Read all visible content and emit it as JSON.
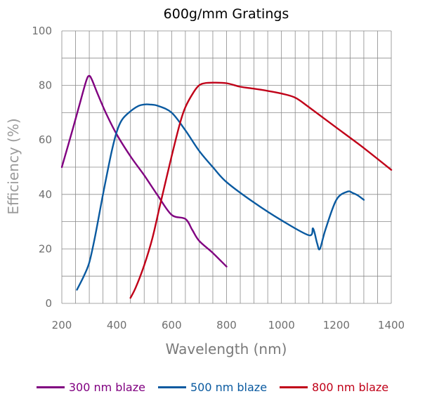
{
  "chart_data": {
    "type": "line",
    "title": "600g/mm Gratings",
    "xlabel": "Wavelength (nm)",
    "ylabel": "Efficiency  (%)",
    "xlim": [
      200,
      1400
    ],
    "ylim": [
      0,
      100
    ],
    "xticks": [
      200,
      400,
      600,
      800,
      1000,
      1200,
      1400
    ],
    "yticks": [
      0,
      20,
      40,
      60,
      80,
      100
    ],
    "grid": true,
    "legend_position": "bottom",
    "series": [
      {
        "name": "300 nm blaze",
        "color": "#800080",
        "x": [
          200,
          240,
          270,
          290,
          300,
          310,
          330,
          360,
          400,
          450,
          500,
          550,
          600,
          650,
          675,
          700,
          750,
          800
        ],
        "y": [
          50,
          64,
          75,
          82,
          83.5,
          82,
          77,
          70,
          62,
          54,
          47,
          39.5,
          32.5,
          31,
          27,
          23,
          18.5,
          13.5
        ]
      },
      {
        "name": "500 nm blaze",
        "color": "#0a5aa0",
        "x": [
          255,
          280,
          300,
          320,
          350,
          380,
          400,
          420,
          450,
          480,
          500,
          520,
          550,
          600,
          650,
          700,
          750,
          800,
          900,
          1000,
          1100,
          1115,
          1130,
          1140,
          1160,
          1200,
          1240,
          1260,
          1280,
          1300
        ],
        "y": [
          5,
          10,
          15,
          24,
          40,
          55,
          63,
          67.5,
          70.5,
          72.5,
          73,
          73,
          72.5,
          70,
          63.5,
          56,
          50,
          44.5,
          37,
          30.5,
          25,
          27.5,
          22,
          20,
          27,
          38,
          41,
          40.5,
          39.5,
          38
        ]
      },
      {
        "name": "800 nm blaze",
        "color": "#c00018",
        "x": [
          450,
          470,
          500,
          530,
          560,
          600,
          630,
          650,
          680,
          700,
          720,
          750,
          800,
          850,
          900,
          950,
          1000,
          1050,
          1100,
          1200,
          1300,
          1400
        ],
        "y": [
          2,
          6,
          14,
          24,
          37,
          54,
          66,
          72,
          77.5,
          80,
          80.8,
          81,
          80.8,
          79.5,
          78.8,
          78,
          77,
          75.5,
          72,
          64.5,
          57,
          49
        ]
      }
    ]
  }
}
